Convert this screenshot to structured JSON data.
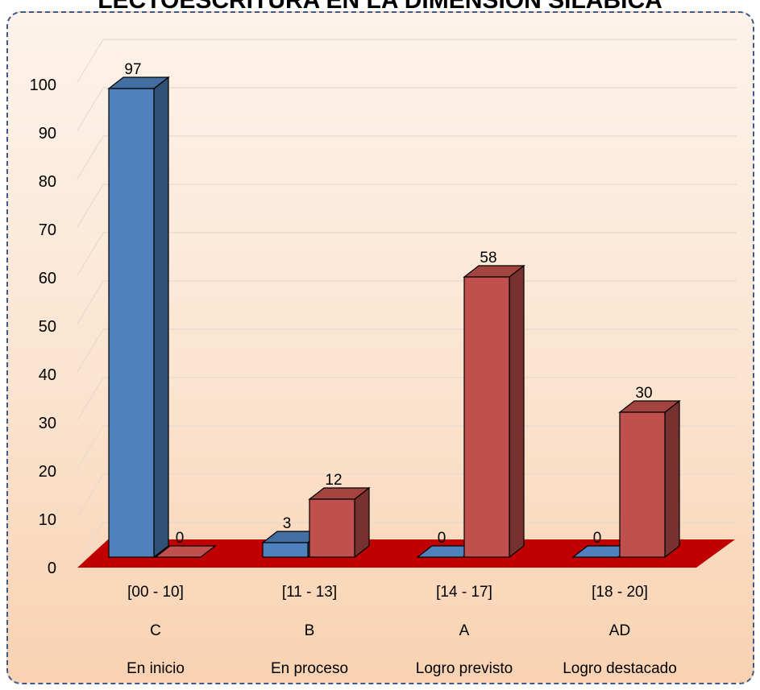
{
  "chart_data": {
    "type": "bar",
    "title": "LECTOESCRITURA EN LA DIMENSIÓN SILÁBICA",
    "categories": [
      [
        "[00 - 10]",
        "C",
        "En inicio"
      ],
      [
        "[11 - 13]",
        "B",
        "En proceso"
      ],
      [
        "[14 - 17]",
        "A",
        "Logro previsto"
      ],
      [
        "[18 - 20]",
        "AD",
        "Logro destacado"
      ]
    ],
    "series": [
      {
        "values": [
          97,
          3,
          0,
          0
        ],
        "color": "#4f81bd"
      },
      {
        "values": [
          0,
          12,
          58,
          30
        ],
        "color": "#c0504d"
      }
    ],
    "yticks": [
      0,
      10,
      20,
      30,
      40,
      50,
      60,
      70,
      80,
      90,
      100
    ],
    "ylim": [
      0,
      100
    ],
    "grid": true,
    "floor_color": "#c00000",
    "style": "3d-column"
  }
}
